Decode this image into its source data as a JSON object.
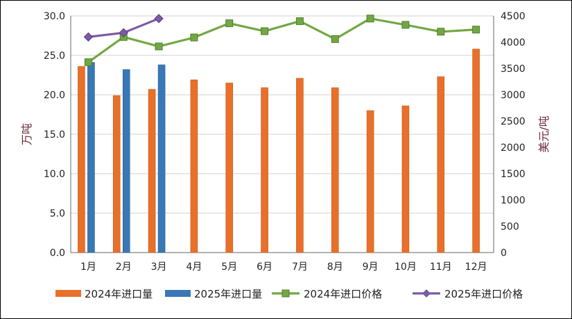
{
  "chart_data": {
    "type": "bar+line",
    "categories": [
      "1月",
      "2月",
      "3月",
      "4月",
      "5月",
      "6月",
      "7月",
      "8月",
      "9月",
      "10月",
      "11月",
      "12月"
    ],
    "bar_series": [
      {
        "name": "2024年进口量",
        "color": "#e8702a",
        "values": [
          23.6,
          19.9,
          20.7,
          21.9,
          21.5,
          20.9,
          22.1,
          20.9,
          18.0,
          18.6,
          22.3,
          25.8
        ]
      },
      {
        "name": "2025年进口量",
        "color": "#3a78b5",
        "values": [
          24.1,
          23.2,
          23.8,
          null,
          null,
          null,
          null,
          null,
          null,
          null,
          null,
          null
        ]
      }
    ],
    "line_series": [
      {
        "name": "2024年进口价格",
        "color": "#72a844",
        "marker": "square",
        "values": [
          3620,
          4100,
          3920,
          4090,
          4360,
          4210,
          4400,
          4060,
          4450,
          4330,
          4200,
          4240
        ]
      },
      {
        "name": "2025年进口价格",
        "color": "#7b5aa6",
        "marker": "diamond",
        "values": [
          4100,
          4180,
          4450,
          null,
          null,
          null,
          null,
          null,
          null,
          null,
          null,
          null
        ]
      }
    ],
    "left_axis": {
      "label": "万吨",
      "ylim": [
        0,
        30
      ],
      "ticks": [
        "0.0",
        "5.0",
        "10.0",
        "15.0",
        "20.0",
        "25.0",
        "30.0"
      ]
    },
    "right_axis": {
      "label": "美元/吨",
      "ylim": [
        0,
        4500
      ],
      "ticks": [
        "0",
        "500",
        "1000",
        "1500",
        "2000",
        "2500",
        "3000",
        "3500",
        "4000",
        "4500"
      ]
    },
    "grid": true,
    "legend_position": "bottom"
  }
}
